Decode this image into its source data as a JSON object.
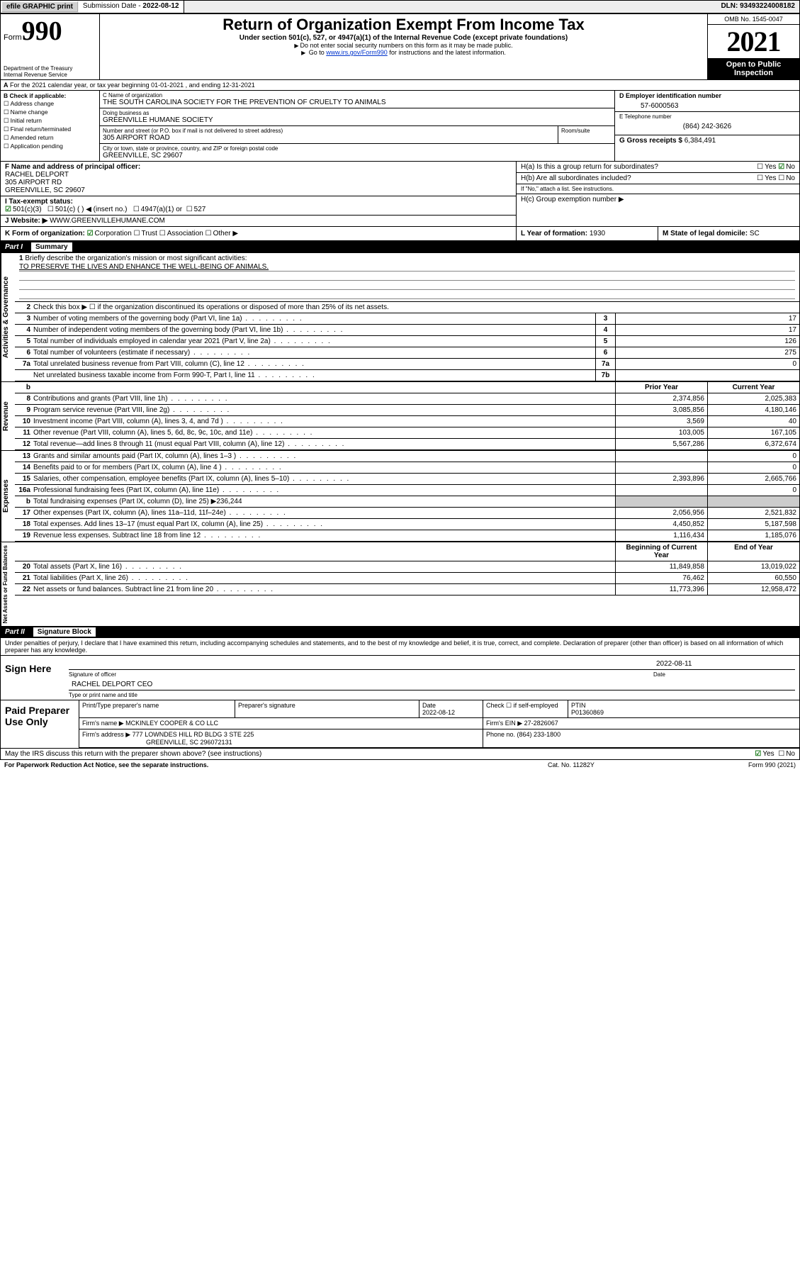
{
  "topbar": {
    "efile": "efile GRAPHIC print",
    "subdate_label": "Submission Date - ",
    "subdate": "2022-08-12",
    "dln_label": "DLN: ",
    "dln": "93493224008182"
  },
  "header": {
    "form_label": "Form",
    "form_num": "990",
    "dept": "Department of the Treasury\nInternal Revenue Service",
    "title": "Return of Organization Exempt From Income Tax",
    "sub": "Under section 501(c), 527, or 4947(a)(1) of the Internal Revenue Code (except private foundations)",
    "note1": "Do not enter social security numbers on this form as it may be made public.",
    "note2_pre": "Go to ",
    "note2_link": "www.irs.gov/Form990",
    "note2_post": " for instructions and the latest information.",
    "omb": "OMB No. 1545-0047",
    "year": "2021",
    "inspect": "Open to Public Inspection"
  },
  "row_a": "For the 2021 calendar year, or tax year beginning 01-01-2021   , and ending 12-31-2021",
  "section_b": {
    "label": "B Check if applicable:",
    "opts": [
      "Address change",
      "Name change",
      "Initial return",
      "Final return/terminated",
      "Amended return",
      "Application pending"
    ]
  },
  "section_c": {
    "label": "C Name of organization",
    "name": "THE SOUTH CAROLINA SOCIETY FOR THE PREVENTION OF CRUELTY TO ANIMALS",
    "dba_label": "Doing business as",
    "dba": "GREENVILLE HUMANE SOCIETY",
    "addr_label": "Number and street (or P.O. box if mail is not delivered to street address)",
    "addr": "305 AIRPORT ROAD",
    "room_label": "Room/suite",
    "city_label": "City or town, state or province, country, and ZIP or foreign postal code",
    "city": "GREENVILLE, SC  29607"
  },
  "section_d": {
    "label": "D Employer identification number",
    "ein": "57-6000563",
    "phone_label": "E Telephone number",
    "phone": "(864) 242-3626",
    "gross_label": "G Gross receipts $ ",
    "gross": "6,384,491"
  },
  "section_f": {
    "label": "F Name and address of principal officer:",
    "name": "RACHEL DELPORT",
    "addr": "305 AIRPORT RD",
    "city": "GREENVILLE, SC  29607"
  },
  "section_h": {
    "a_label": "H(a)  Is this a group return for subordinates?",
    "a_yes": "Yes",
    "a_no": "No",
    "b_label": "H(b)  Are all subordinates included?",
    "b_note": "If \"No,\" attach a list. See instructions.",
    "c_label": "H(c)  Group exemption number ▶"
  },
  "section_i": {
    "label": "I  Tax-exempt status:",
    "o1": "501(c)(3)",
    "o2": "501(c) (  ) ◀ (insert no.)",
    "o3": "4947(a)(1) or",
    "o4": "527"
  },
  "section_j": {
    "label": "J  Website: ▶",
    "val": "WWW.GREENVILLEHUMANE.COM"
  },
  "section_k": {
    "label": "K Form of organization:",
    "o1": "Corporation",
    "o2": "Trust",
    "o3": "Association",
    "o4": "Other ▶"
  },
  "section_l": {
    "label": "L Year of formation: ",
    "val": "1930"
  },
  "section_m": {
    "label": "M State of legal domicile: ",
    "val": "SC"
  },
  "part1": {
    "num": "Part I",
    "title": "Summary",
    "q1": "Briefly describe the organization's mission or most significant activities:",
    "q1a": "TO PRESERVE THE LIVES AND ENHANCE THE WELL-BEING OF ANIMALS.",
    "q2": "Check this box ▶ ☐  if the organization discontinued its operations or disposed of more than 25% of its net assets.",
    "rows_gov": [
      {
        "n": "3",
        "d": "Number of voting members of the governing body (Part VI, line 1a)",
        "bn": "3",
        "v": "17"
      },
      {
        "n": "4",
        "d": "Number of independent voting members of the governing body (Part VI, line 1b)",
        "bn": "4",
        "v": "17"
      },
      {
        "n": "5",
        "d": "Total number of individuals employed in calendar year 2021 (Part V, line 2a)",
        "bn": "5",
        "v": "126"
      },
      {
        "n": "6",
        "d": "Total number of volunteers (estimate if necessary)",
        "bn": "6",
        "v": "275"
      },
      {
        "n": "7a",
        "d": "Total unrelated business revenue from Part VIII, column (C), line 12",
        "bn": "7a",
        "v": "0"
      },
      {
        "n": "",
        "d": "Net unrelated business taxable income from Form 990-T, Part I, line 11",
        "bn": "7b",
        "v": ""
      }
    ],
    "hdr_b": "b",
    "col_py": "Prior Year",
    "col_cy": "Current Year",
    "rows_rev": [
      {
        "n": "8",
        "d": "Contributions and grants (Part VIII, line 1h)",
        "py": "2,374,856",
        "cy": "2,025,383"
      },
      {
        "n": "9",
        "d": "Program service revenue (Part VIII, line 2g)",
        "py": "3,085,856",
        "cy": "4,180,146"
      },
      {
        "n": "10",
        "d": "Investment income (Part VIII, column (A), lines 3, 4, and 7d )",
        "py": "3,569",
        "cy": "40"
      },
      {
        "n": "11",
        "d": "Other revenue (Part VIII, column (A), lines 5, 6d, 8c, 9c, 10c, and 11e)",
        "py": "103,005",
        "cy": "167,105"
      },
      {
        "n": "12",
        "d": "Total revenue—add lines 8 through 11 (must equal Part VIII, column (A), line 12)",
        "py": "5,567,286",
        "cy": "6,372,674"
      }
    ],
    "rows_exp": [
      {
        "n": "13",
        "d": "Grants and similar amounts paid (Part IX, column (A), lines 1–3 )",
        "py": "",
        "cy": "0"
      },
      {
        "n": "14",
        "d": "Benefits paid to or for members (Part IX, column (A), line 4 )",
        "py": "",
        "cy": "0"
      },
      {
        "n": "15",
        "d": "Salaries, other compensation, employee benefits (Part IX, column (A), lines 5–10)",
        "py": "2,393,896",
        "cy": "2,665,766"
      },
      {
        "n": "16a",
        "d": "Professional fundraising fees (Part IX, column (A), line 11e)",
        "py": "",
        "cy": "0"
      },
      {
        "n": "b",
        "d": "Total fundraising expenses (Part IX, column (D), line 25) ▶236,244",
        "grey": true
      },
      {
        "n": "17",
        "d": "Other expenses (Part IX, column (A), lines 11a–11d, 11f–24e)",
        "py": "2,056,956",
        "cy": "2,521,832"
      },
      {
        "n": "18",
        "d": "Total expenses. Add lines 13–17 (must equal Part IX, column (A), line 25)",
        "py": "4,450,852",
        "cy": "5,187,598"
      },
      {
        "n": "19",
        "d": "Revenue less expenses. Subtract line 18 from line 12",
        "py": "1,116,434",
        "cy": "1,185,076"
      }
    ],
    "col_boy": "Beginning of Current Year",
    "col_eoy": "End of Year",
    "rows_net": [
      {
        "n": "20",
        "d": "Total assets (Part X, line 16)",
        "py": "11,849,858",
        "cy": "13,019,022"
      },
      {
        "n": "21",
        "d": "Total liabilities (Part X, line 26)",
        "py": "76,462",
        "cy": "60,550"
      },
      {
        "n": "22",
        "d": "Net assets or fund balances. Subtract line 21 from line 20",
        "py": "11,773,396",
        "cy": "12,958,472"
      }
    ],
    "vlab_gov": "Activities & Governance",
    "vlab_rev": "Revenue",
    "vlab_exp": "Expenses",
    "vlab_net": "Net Assets or Fund Balances"
  },
  "part2": {
    "num": "Part II",
    "title": "Signature Block"
  },
  "penalty": "Under penalties of perjury, I declare that I have examined this return, including accompanying schedules and statements, and to the best of my knowledge and belief, it is true, correct, and complete. Declaration of preparer (other than officer) is based on all information of which preparer has any knowledge.",
  "sign": {
    "here": "Sign Here",
    "sig_label": "Signature of officer",
    "date": "2022-08-11",
    "date_label": "Date",
    "name": "RACHEL DELPORT CEO",
    "name_label": "Type or print name and title"
  },
  "prep": {
    "title": "Paid Preparer Use Only",
    "c1": "Print/Type preparer's name",
    "c2": "Preparer's signature",
    "c3": "Date",
    "c3v": "2022-08-12",
    "c4": "Check ☐ if self-employed",
    "c5": "PTIN",
    "c5v": "P01360869",
    "firm_lbl": "Firm's name   ▶",
    "firm": "MCKINLEY COOPER & CO LLC",
    "ein_lbl": "Firm's EIN ▶",
    "ein": "27-2826067",
    "addr_lbl": "Firm's address ▶",
    "addr": "777 LOWNDES HILL RD BLDG 3 STE 225",
    "addr2": "GREENVILLE, SC  296072131",
    "phone_lbl": "Phone no. ",
    "phone": "(864) 233-1800"
  },
  "footer": {
    "discuss": "May the IRS discuss this return with the preparer shown above? (see instructions)",
    "yes": "Yes",
    "no": "No",
    "pra": "For Paperwork Reduction Act Notice, see the separate instructions.",
    "cat": "Cat. No. 11282Y",
    "form": "Form 990 (2021)"
  }
}
